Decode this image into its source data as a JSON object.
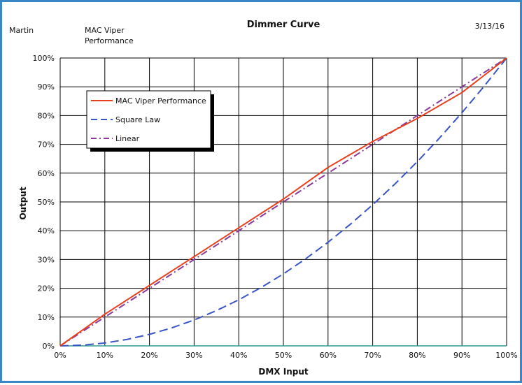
{
  "header": {
    "left": "Martin",
    "model_line1": "MAC Viper",
    "model_line2": "Performance",
    "date": "3/13/16"
  },
  "chart_data": {
    "type": "line",
    "title": "Dimmer Curve",
    "xlabel": "DMX Input",
    "ylabel": "Output",
    "xlim": [
      0,
      100
    ],
    "ylim": [
      0,
      100
    ],
    "grid": true,
    "legend_position": "top-left",
    "x_ticks": [
      "0%",
      "10%",
      "20%",
      "30%",
      "40%",
      "50%",
      "60%",
      "70%",
      "80%",
      "90%",
      "100%"
    ],
    "y_ticks": [
      "0%",
      "10%",
      "20%",
      "30%",
      "40%",
      "50%",
      "60%",
      "70%",
      "80%",
      "90%",
      "100%"
    ],
    "series": [
      {
        "name": "MAC Viper Performance",
        "color": "#e8401c",
        "style": "solid",
        "x": [
          0,
          10,
          20,
          30,
          40,
          50,
          60,
          70,
          80,
          90,
          100
        ],
        "y": [
          0,
          11,
          21,
          31,
          41,
          51,
          62,
          71,
          79,
          88,
          100
        ]
      },
      {
        "name": "Square Law",
        "color": "#3b55c4",
        "style": "dashed",
        "x": [
          0,
          5,
          10,
          15,
          20,
          25,
          30,
          35,
          40,
          45,
          50,
          55,
          60,
          65,
          70,
          75,
          80,
          85,
          90,
          95,
          100
        ],
        "y": [
          0,
          0.25,
          1,
          2.25,
          4,
          6.25,
          9,
          12.25,
          16,
          20.25,
          25,
          30.25,
          36,
          42.25,
          49,
          56.25,
          64,
          72.25,
          81,
          90.25,
          100
        ]
      },
      {
        "name": "Linear",
        "color": "#8a3a9c",
        "style": "dashdot",
        "x": [
          0,
          100
        ],
        "y": [
          0,
          100
        ]
      }
    ]
  }
}
